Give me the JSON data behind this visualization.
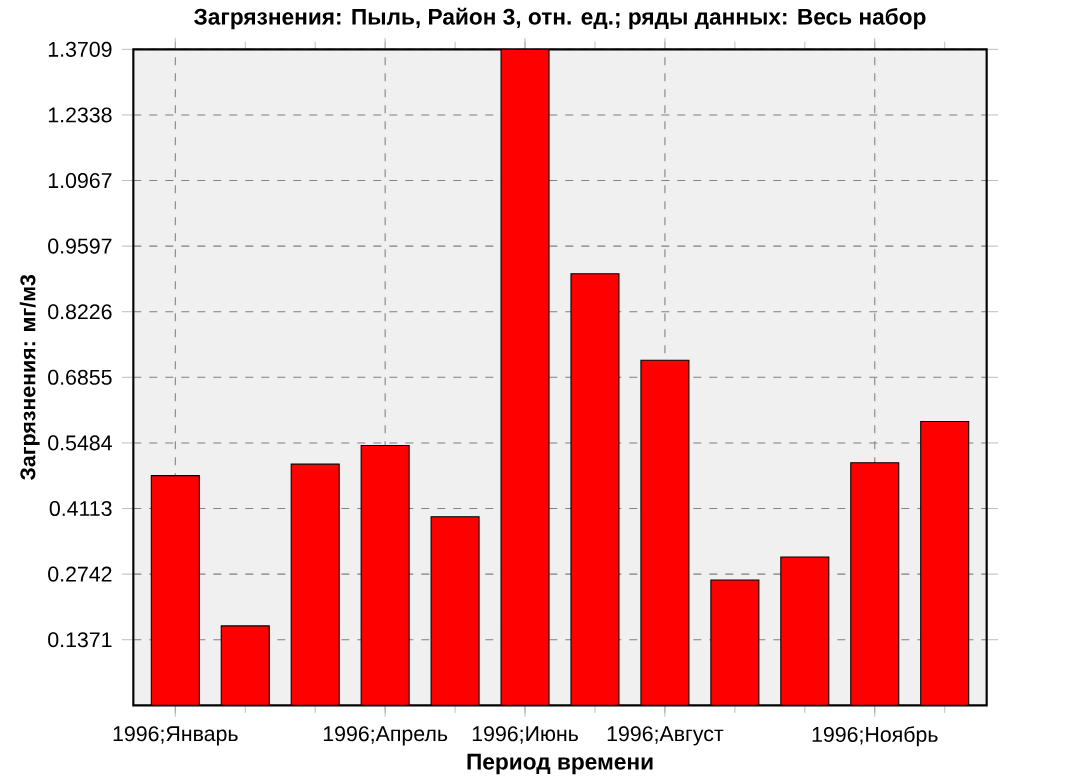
{
  "chart_data": {
    "type": "bar",
    "title": "Загрязнения:  Пыль, Район 3, отн. ед.; ряды данных: Весь набор",
    "xlabel": "Период времени",
    "ylabel": "Загрязнения:  мг/м3",
    "categories": [
      "1996;Январь",
      null,
      null,
      "1996;Апрель",
      null,
      "1996;Июнь",
      null,
      "1996;Август",
      null,
      null,
      "1996;Ноябрь",
      null
    ],
    "values": [
      0.48,
      0.166,
      0.504,
      0.543,
      0.394,
      1.3709,
      0.902,
      0.721,
      0.262,
      0.31,
      0.507,
      0.593
    ],
    "color": "#ff0000",
    "ylim": [
      0,
      1.3709
    ],
    "yticks": [
      0.1371,
      0.2742,
      0.4113,
      0.5484,
      0.6855,
      0.8226,
      0.9597,
      1.0967,
      1.2338,
      1.3709
    ],
    "grid": true
  }
}
